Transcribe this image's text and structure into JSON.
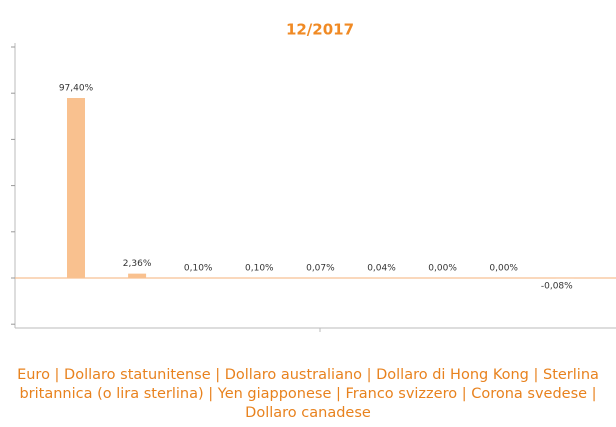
{
  "chart_data": {
    "type": "bar",
    "title": "12/2017",
    "categories": [
      null,
      null,
      null,
      null,
      null,
      null,
      null,
      null,
      null
    ],
    "values": [
      97.4,
      2.36,
      0.1,
      0.1,
      0.07,
      0.04,
      0.0,
      0.0,
      -0.08
    ],
    "value_labels": [
      "97,40%",
      "2,36%",
      "0,10%",
      "0,10%",
      "0,07%",
      "0,04%",
      "0,00%",
      "0,00%",
      "-0,08%"
    ],
    "color": "#f9c18f",
    "ylim": [
      -27,
      127
    ],
    "yticks": [
      -25,
      0,
      25,
      50,
      75,
      100,
      125
    ],
    "grid": false,
    "caption": "Euro | Dollaro statunitense | Dollaro australiano | Dollaro di Hong Kong | Sterlina britannica (o lira sterlina) | Yen giapponese | Franco svizzero | Corona svedese | Dollaro canadese"
  }
}
